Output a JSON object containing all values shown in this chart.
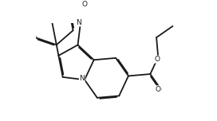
{
  "background": "#ffffff",
  "line_color": "#1a1a1a",
  "lw": 1.3,
  "dbl": 0.045,
  "figsize": [
    2.72,
    1.52
  ],
  "dpi": 100,
  "xlim": [
    -2.8,
    3.8
  ],
  "ylim": [
    -2.2,
    2.2
  ]
}
